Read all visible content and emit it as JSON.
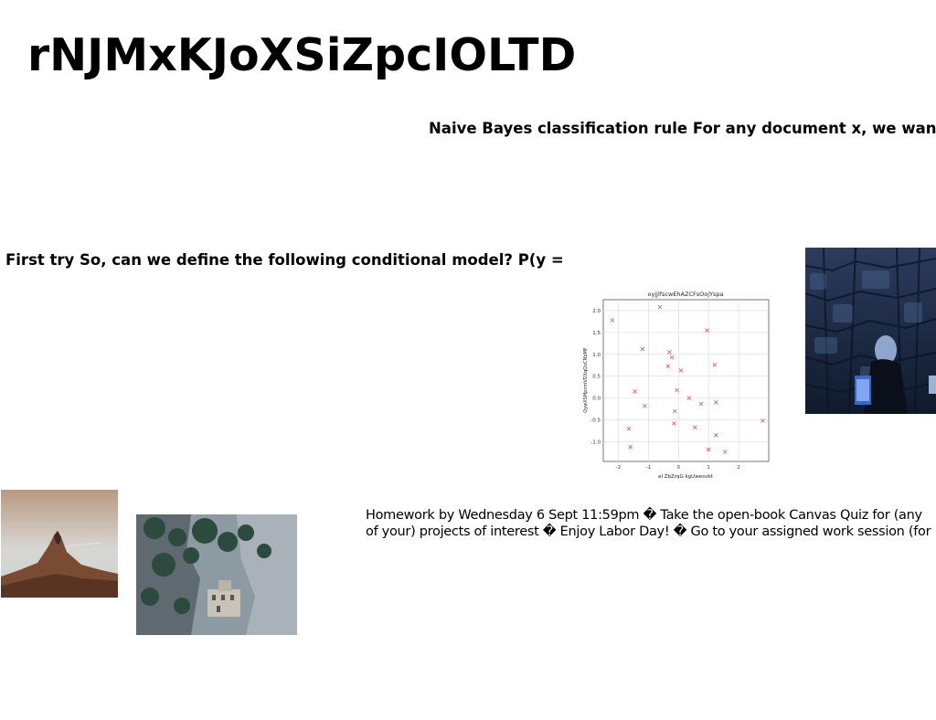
{
  "slide": {
    "title": "rNJMxKJoXSiZpcIOLTD",
    "subheading": "Naive Bayes classification rule For any document x, we want",
    "paragraph_1": "First try So, can we define the following conditional model? P(y =",
    "paragraph_2_lines": [
      "Homework by Wednesday 6 Sept 11:59pm � Take the open-book Canvas Quiz for (any",
      "of your) projects of interest � Enjoy Labor Day! � Go to your assigned work session (for"
    ]
  },
  "images": [
    {
      "name": "night-stone-wall-woman-photo"
    },
    {
      "name": "mountain-peak-sunset-photo"
    },
    {
      "name": "cliff-monastery-photo"
    }
  ],
  "chart_data": {
    "type": "scatter",
    "title": "oyjjlfscwEhAZCFsOojYspa",
    "xlabel": "el ZbZrqG kgUwesvbt",
    "ylabel": "QywXSMpnmVDXqQxCNbMF",
    "xlim": [
      -2.5,
      3.0
    ],
    "ylim": [
      -1.45,
      2.25
    ],
    "xticks": [
      "-2",
      "-1",
      "0",
      "1",
      "2"
    ],
    "yticks": [
      "-1.0",
      "-0.5",
      "0.0",
      "0.5",
      "1.0",
      "1.5",
      "2.0"
    ],
    "grid": true,
    "marker": "x",
    "color": "#d9534f",
    "points": [
      {
        "x": -2.2,
        "y": 1.78
      },
      {
        "x": -0.62,
        "y": 2.08
      },
      {
        "x": 0.95,
        "y": 1.55
      },
      {
        "x": -1.2,
        "y": 1.12
      },
      {
        "x": -0.3,
        "y": 1.05
      },
      {
        "x": -0.22,
        "y": 0.93
      },
      {
        "x": -0.35,
        "y": 0.73
      },
      {
        "x": 0.08,
        "y": 0.63
      },
      {
        "x": 1.2,
        "y": 0.76
      },
      {
        "x": -1.45,
        "y": 0.15
      },
      {
        "x": -1.12,
        "y": -0.18
      },
      {
        "x": -0.05,
        "y": 0.18
      },
      {
        "x": 0.35,
        "y": 0.0
      },
      {
        "x": 0.75,
        "y": -0.13
      },
      {
        "x": 1.25,
        "y": -0.1
      },
      {
        "x": -0.12,
        "y": -0.3
      },
      {
        "x": -1.65,
        "y": -0.7
      },
      {
        "x": -0.15,
        "y": -0.58
      },
      {
        "x": 0.55,
        "y": -0.67
      },
      {
        "x": 1.25,
        "y": -0.85
      },
      {
        "x": -1.6,
        "y": -1.12
      },
      {
        "x": 1.0,
        "y": -1.18
      },
      {
        "x": 1.55,
        "y": -1.23
      },
      {
        "x": 2.8,
        "y": -0.52
      }
    ]
  }
}
